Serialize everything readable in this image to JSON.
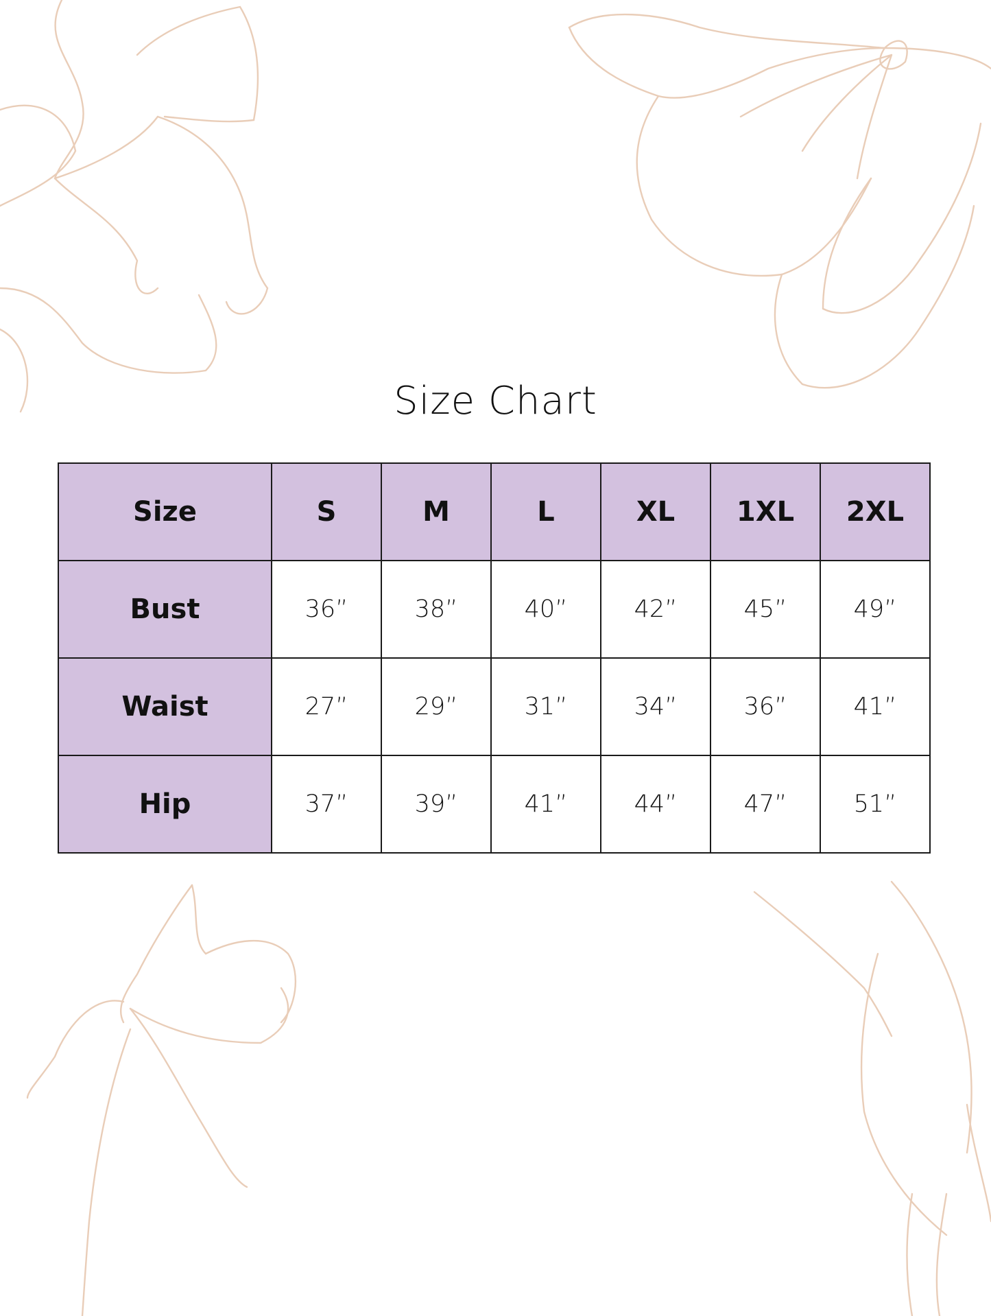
{
  "title": "Size Chart",
  "colors": {
    "header_fill": "#d3c1df",
    "border": "#1a1a1a",
    "floral_line": "#e9cdb8"
  },
  "table": {
    "header": [
      "Size",
      "S",
      "M",
      "L",
      "XL",
      "1XL",
      "2XL"
    ],
    "rows": [
      {
        "label": "Bust",
        "values": [
          "36”",
          "38”",
          "40”",
          "42”",
          "45”",
          "49”"
        ]
      },
      {
        "label": "Waist",
        "values": [
          "27”",
          "29”",
          "31”",
          "34”",
          "36”",
          "41”"
        ]
      },
      {
        "label": "Hip",
        "values": [
          "37”",
          "39”",
          "41”",
          "44”",
          "47”",
          "51”"
        ]
      }
    ]
  }
}
